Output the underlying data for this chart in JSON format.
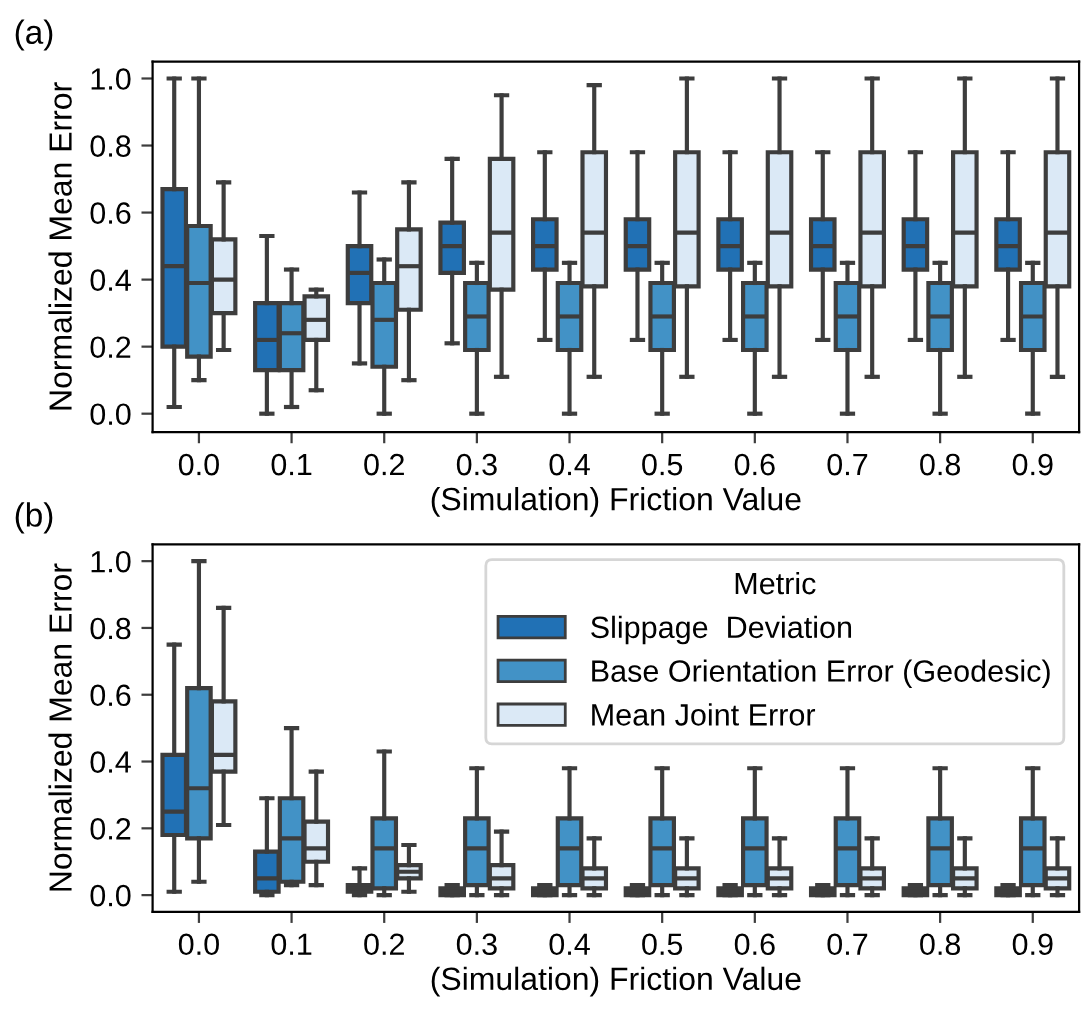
{
  "chart_data": [
    {
      "type": "box",
      "title": "(a)",
      "xlabel": "(Simulation) Friction Value",
      "ylabel": "Normalized Mean Error",
      "categories": [
        "0.0",
        "0.1",
        "0.2",
        "0.3",
        "0.4",
        "0.5",
        "0.6",
        "0.7",
        "0.8",
        "0.9"
      ],
      "ylim": [
        -0.055,
        1.05
      ],
      "yticks": [
        {
          "value": 0,
          "label": "0.0"
        },
        {
          "value": 0.2,
          "label": "0.2"
        },
        {
          "value": 0.4,
          "label": "0.4"
        },
        {
          "value": 0.6,
          "label": "0.6"
        },
        {
          "value": 0.8,
          "label": "0.8"
        },
        {
          "value": 1,
          "label": "1.0"
        }
      ],
      "grid": false,
      "series": [
        {
          "color": "#2171b5",
          "boxes": [
            {
              "low": 0.02,
              "q1": 0.2,
              "median": 0.44,
              "q3": 0.67,
              "high": 1.0
            },
            {
              "low": 0.0,
              "q1": 0.13,
              "median": 0.22,
              "q3": 0.33,
              "high": 0.53
            },
            {
              "low": 0.15,
              "q1": 0.33,
              "median": 0.42,
              "q3": 0.5,
              "high": 0.66
            },
            {
              "low": 0.21,
              "q1": 0.42,
              "median": 0.5,
              "q3": 0.57,
              "high": 0.76
            },
            {
              "low": 0.22,
              "q1": 0.43,
              "median": 0.5,
              "q3": 0.58,
              "high": 0.78
            },
            {
              "low": 0.22,
              "q1": 0.43,
              "median": 0.5,
              "q3": 0.58,
              "high": 0.78
            },
            {
              "low": 0.22,
              "q1": 0.43,
              "median": 0.5,
              "q3": 0.58,
              "high": 0.78
            },
            {
              "low": 0.22,
              "q1": 0.43,
              "median": 0.5,
              "q3": 0.58,
              "high": 0.78
            },
            {
              "low": 0.22,
              "q1": 0.43,
              "median": 0.5,
              "q3": 0.58,
              "high": 0.78
            },
            {
              "low": 0.22,
              "q1": 0.43,
              "median": 0.5,
              "q3": 0.58,
              "high": 0.78
            }
          ]
        },
        {
          "color": "#4292c6",
          "boxes": [
            {
              "low": 0.1,
              "q1": 0.17,
              "median": 0.39,
              "q3": 0.56,
              "high": 1.0
            },
            {
              "low": 0.02,
              "q1": 0.13,
              "median": 0.24,
              "q3": 0.33,
              "high": 0.43
            },
            {
              "low": 0.0,
              "q1": 0.14,
              "median": 0.28,
              "q3": 0.39,
              "high": 0.46
            },
            {
              "low": 0.0,
              "q1": 0.19,
              "median": 0.29,
              "q3": 0.39,
              "high": 0.45
            },
            {
              "low": 0.0,
              "q1": 0.19,
              "median": 0.29,
              "q3": 0.39,
              "high": 0.45
            },
            {
              "low": 0.0,
              "q1": 0.19,
              "median": 0.29,
              "q3": 0.39,
              "high": 0.45
            },
            {
              "low": 0.0,
              "q1": 0.19,
              "median": 0.29,
              "q3": 0.39,
              "high": 0.45
            },
            {
              "low": 0.0,
              "q1": 0.19,
              "median": 0.29,
              "q3": 0.39,
              "high": 0.45
            },
            {
              "low": 0.0,
              "q1": 0.19,
              "median": 0.29,
              "q3": 0.39,
              "high": 0.45
            },
            {
              "low": 0.0,
              "q1": 0.19,
              "median": 0.29,
              "q3": 0.39,
              "high": 0.45
            }
          ]
        },
        {
          "color": "#dbe9f6",
          "boxes": [
            {
              "low": 0.19,
              "q1": 0.3,
              "median": 0.4,
              "q3": 0.52,
              "high": 0.69
            },
            {
              "low": 0.07,
              "q1": 0.22,
              "median": 0.28,
              "q3": 0.35,
              "high": 0.37
            },
            {
              "low": 0.1,
              "q1": 0.31,
              "median": 0.44,
              "q3": 0.55,
              "high": 0.69
            },
            {
              "low": 0.11,
              "q1": 0.37,
              "median": 0.54,
              "q3": 0.76,
              "high": 0.95
            },
            {
              "low": 0.11,
              "q1": 0.38,
              "median": 0.54,
              "q3": 0.78,
              "high": 0.98
            },
            {
              "low": 0.11,
              "q1": 0.38,
              "median": 0.54,
              "q3": 0.78,
              "high": 1.0
            },
            {
              "low": 0.11,
              "q1": 0.38,
              "median": 0.54,
              "q3": 0.78,
              "high": 1.0
            },
            {
              "low": 0.11,
              "q1": 0.38,
              "median": 0.54,
              "q3": 0.78,
              "high": 1.0
            },
            {
              "low": 0.11,
              "q1": 0.38,
              "median": 0.54,
              "q3": 0.78,
              "high": 1.0
            },
            {
              "low": 0.11,
              "q1": 0.38,
              "median": 0.54,
              "q3": 0.78,
              "high": 1.0
            }
          ]
        }
      ]
    },
    {
      "type": "box",
      "title": "(b)",
      "xlabel": "(Simulation) Friction Value",
      "ylabel": "Normalized Mean Error",
      "legend_title": "Metric",
      "categories": [
        "0.0",
        "0.1",
        "0.2",
        "0.3",
        "0.4",
        "0.5",
        "0.6",
        "0.7",
        "0.8",
        "0.9"
      ],
      "ylim": [
        -0.05,
        1.05
      ],
      "yticks": [
        {
          "value": 0,
          "label": "0.0"
        },
        {
          "value": 0.2,
          "label": "0.2"
        },
        {
          "value": 0.4,
          "label": "0.4"
        },
        {
          "value": 0.6,
          "label": "0.6"
        },
        {
          "value": 0.8,
          "label": "0.8"
        },
        {
          "value": 1,
          "label": "1.0"
        }
      ],
      "grid": false,
      "legend": "top right",
      "series": [
        {
          "name": "Slippage  Deviation",
          "color": "#2171b5",
          "boxes": [
            {
              "low": 0.01,
              "q1": 0.18,
              "median": 0.25,
              "q3": 0.42,
              "high": 0.75
            },
            {
              "low": 0.0,
              "q1": 0.01,
              "median": 0.05,
              "q3": 0.13,
              "high": 0.29
            },
            {
              "low": 0.0,
              "q1": 0.01,
              "median": 0.02,
              "q3": 0.03,
              "high": 0.08
            },
            {
              "low": 0.0,
              "q1": 0.0,
              "median": 0.01,
              "q3": 0.02,
              "high": 0.03
            },
            {
              "low": 0.0,
              "q1": 0.0,
              "median": 0.01,
              "q3": 0.02,
              "high": 0.03
            },
            {
              "low": 0.0,
              "q1": 0.0,
              "median": 0.01,
              "q3": 0.02,
              "high": 0.03
            },
            {
              "low": 0.0,
              "q1": 0.0,
              "median": 0.01,
              "q3": 0.02,
              "high": 0.03
            },
            {
              "low": 0.0,
              "q1": 0.0,
              "median": 0.01,
              "q3": 0.02,
              "high": 0.03
            },
            {
              "low": 0.0,
              "q1": 0.0,
              "median": 0.01,
              "q3": 0.02,
              "high": 0.03
            },
            {
              "low": 0.0,
              "q1": 0.0,
              "median": 0.01,
              "q3": 0.02,
              "high": 0.03
            }
          ]
        },
        {
          "name": "Base Orientation Error (Geodesic)",
          "color": "#4292c6",
          "boxes": [
            {
              "low": 0.04,
              "q1": 0.17,
              "median": 0.32,
              "q3": 0.62,
              "high": 1.0
            },
            {
              "low": 0.03,
              "q1": 0.04,
              "median": 0.17,
              "q3": 0.29,
              "high": 0.5
            },
            {
              "low": 0.0,
              "q1": 0.02,
              "median": 0.14,
              "q3": 0.23,
              "high": 0.43
            },
            {
              "low": 0.0,
              "q1": 0.03,
              "median": 0.14,
              "q3": 0.23,
              "high": 0.38
            },
            {
              "low": 0.0,
              "q1": 0.03,
              "median": 0.14,
              "q3": 0.23,
              "high": 0.38
            },
            {
              "low": 0.0,
              "q1": 0.03,
              "median": 0.14,
              "q3": 0.23,
              "high": 0.38
            },
            {
              "low": 0.0,
              "q1": 0.03,
              "median": 0.14,
              "q3": 0.23,
              "high": 0.38
            },
            {
              "low": 0.0,
              "q1": 0.03,
              "median": 0.14,
              "q3": 0.23,
              "high": 0.38
            },
            {
              "low": 0.0,
              "q1": 0.03,
              "median": 0.14,
              "q3": 0.23,
              "high": 0.38
            },
            {
              "low": 0.0,
              "q1": 0.03,
              "median": 0.14,
              "q3": 0.23,
              "high": 0.38
            }
          ]
        },
        {
          "name": "Mean Joint Error",
          "color": "#dbe9f6",
          "boxes": [
            {
              "low": 0.21,
              "q1": 0.37,
              "median": 0.42,
              "q3": 0.58,
              "high": 0.86
            },
            {
              "low": 0.03,
              "q1": 0.1,
              "median": 0.14,
              "q3": 0.22,
              "high": 0.37
            },
            {
              "low": 0.01,
              "q1": 0.05,
              "median": 0.07,
              "q3": 0.09,
              "high": 0.15
            },
            {
              "low": 0.0,
              "q1": 0.02,
              "median": 0.05,
              "q3": 0.09,
              "high": 0.19
            },
            {
              "low": 0.0,
              "q1": 0.02,
              "median": 0.05,
              "q3": 0.08,
              "high": 0.17
            },
            {
              "low": 0.0,
              "q1": 0.02,
              "median": 0.05,
              "q3": 0.08,
              "high": 0.17
            },
            {
              "low": 0.0,
              "q1": 0.02,
              "median": 0.05,
              "q3": 0.08,
              "high": 0.17
            },
            {
              "low": 0.0,
              "q1": 0.02,
              "median": 0.05,
              "q3": 0.08,
              "high": 0.17
            },
            {
              "low": 0.0,
              "q1": 0.02,
              "median": 0.05,
              "q3": 0.08,
              "high": 0.17
            },
            {
              "low": 0.0,
              "q1": 0.02,
              "median": 0.05,
              "q3": 0.08,
              "high": 0.17
            }
          ]
        }
      ]
    }
  ]
}
